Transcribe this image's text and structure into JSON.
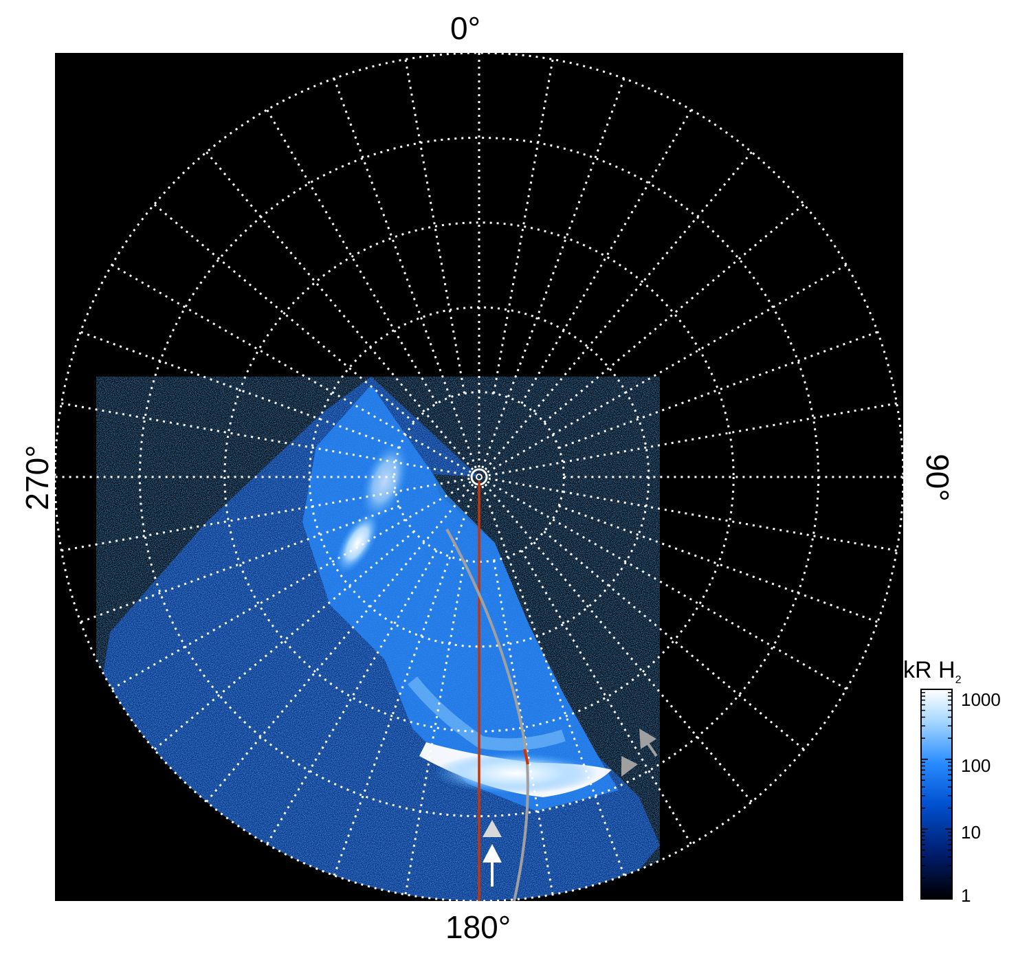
{
  "polar_plot": {
    "labels": {
      "top": "0°",
      "right": "90°",
      "bottom": "180°",
      "left": "270°"
    },
    "background_color": "#000000",
    "grid_color": "#ffffff",
    "grid_style": "dotted",
    "meridian_count": 36,
    "ring_count": 5,
    "overlay_lines": [
      {
        "name": "red-meridian-line",
        "color": "#cc3300"
      },
      {
        "name": "gray-curve-line",
        "color": "#a0a0a0"
      }
    ],
    "arrows": [
      {
        "name": "white-arrow",
        "color": "#ffffff"
      },
      {
        "name": "light-gray-arrow",
        "color": "#d8d8d8"
      },
      {
        "name": "gray-arrow-1",
        "color": "#a0a0a0"
      },
      {
        "name": "gray-arrow-2",
        "color": "#a0a0a0"
      }
    ]
  },
  "colorbar": {
    "title": "kR H",
    "title_sub": "2",
    "ticks": [
      "1000",
      "100",
      "10",
      "1"
    ],
    "scale": "log",
    "range": [
      1,
      1000
    ],
    "colors": [
      "#000000",
      "#001a66",
      "#0050d0",
      "#2a8cff",
      "#a8d8ff",
      "#ffffff"
    ]
  }
}
